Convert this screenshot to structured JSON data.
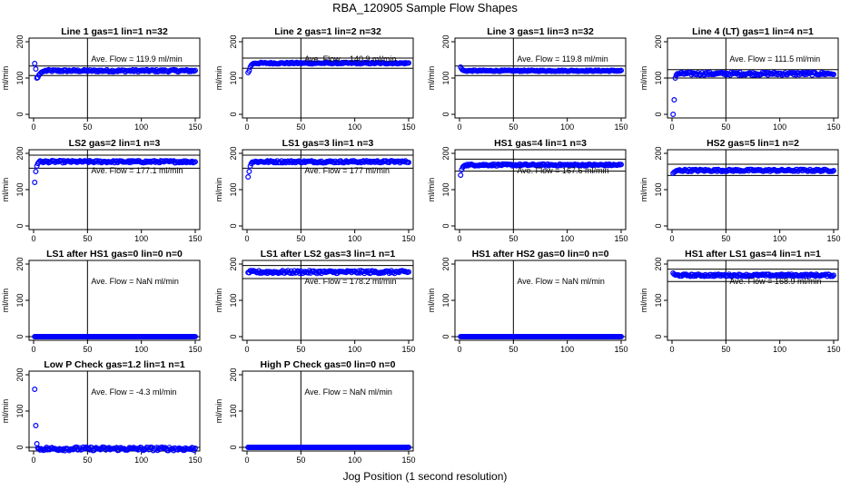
{
  "figure": {
    "title": "RBA_120905  Sample Flow Shapes",
    "xlabel": "Jog Position (1 second resolution)"
  },
  "colors": {
    "points": "#0000ff",
    "axes": "#000000"
  },
  "chart_data": [
    {
      "type": "scatter",
      "title": "Line 1 gas=1 lin=1 n=32",
      "ylabel": "ml/min",
      "annotation": "Ave. Flow =  119.9  ml/min",
      "xlim": [
        0,
        150
      ],
      "ylim": [
        -10,
        210
      ],
      "x_ticks": [
        0,
        50,
        100,
        150
      ],
      "y_ticks": [
        0,
        100,
        200
      ],
      "vline": 50,
      "hlines": [
        107,
        133
      ],
      "level": 120,
      "noise": 3,
      "start": [
        140,
        125,
        100,
        102,
        108,
        112,
        115,
        117,
        118,
        119
      ]
    },
    {
      "type": "scatter",
      "title": "Line 2 gas=1 lin=2 n=32",
      "ylabel": "ml/min",
      "annotation": "Ave. Flow =  140.9  ml/min",
      "xlim": [
        0,
        150
      ],
      "ylim": [
        -10,
        210
      ],
      "x_ticks": [
        0,
        50,
        100,
        150
      ],
      "y_ticks": [
        0,
        100,
        200
      ],
      "vline": 50,
      "hlines": [
        127,
        155
      ],
      "level": 141,
      "noise": 2,
      "start": [
        115,
        120,
        130,
        135,
        138,
        140
      ]
    },
    {
      "type": "scatter",
      "title": "Line 3 gas=1 lin=3 n=32",
      "ylabel": "ml/min",
      "annotation": "Ave. Flow =  119.8  ml/min",
      "xlim": [
        0,
        150
      ],
      "ylim": [
        -10,
        210
      ],
      "x_ticks": [
        0,
        50,
        100,
        150
      ],
      "y_ticks": [
        0,
        100,
        200
      ],
      "vline": 50,
      "hlines": [
        107,
        133
      ],
      "level": 120,
      "noise": 1.5,
      "start": [
        130,
        125,
        122,
        121,
        120
      ]
    },
    {
      "type": "scatter",
      "title": "Line 4 (LT) gas=1 lin=4 n=1",
      "ylabel": "ml/min",
      "annotation": "Ave. Flow =  111.5  ml/min",
      "xlim": [
        0,
        150
      ],
      "ylim": [
        -10,
        210
      ],
      "x_ticks": [
        0,
        50,
        100,
        150
      ],
      "y_ticks": [
        0,
        100,
        200
      ],
      "vline": 50,
      "hlines": [
        100,
        123
      ],
      "level": 112,
      "noise": 4,
      "start": [
        0,
        40,
        100,
        108,
        112
      ]
    },
    {
      "type": "scatter",
      "title": "LS2 gas=2 lin=1 n=3",
      "ylabel": "ml/min",
      "annotation": "Ave. Flow =  177.1  ml/min",
      "xlim": [
        0,
        150
      ],
      "ylim": [
        -10,
        210
      ],
      "x_ticks": [
        0,
        50,
        100,
        150
      ],
      "y_ticks": [
        0,
        100,
        200
      ],
      "vline": 50,
      "hlines": [
        159,
        195
      ],
      "level": 177,
      "noise": 3,
      "start": [
        120,
        150,
        165,
        172,
        176
      ]
    },
    {
      "type": "scatter",
      "title": "LS1 gas=3 lin=1 n=3",
      "ylabel": "ml/min",
      "annotation": "Ave. Flow =  177  ml/min",
      "xlim": [
        0,
        150
      ],
      "ylim": [
        -10,
        210
      ],
      "x_ticks": [
        0,
        50,
        100,
        150
      ],
      "y_ticks": [
        0,
        100,
        200
      ],
      "vline": 50,
      "hlines": [
        159,
        195
      ],
      "level": 177,
      "noise": 3,
      "start": [
        135,
        150,
        165,
        172,
        176
      ]
    },
    {
      "type": "scatter",
      "title": "HS1 gas=4 lin=1 n=3",
      "ylabel": "ml/min",
      "annotation": "Ave. Flow =  167.6  ml/min",
      "xlim": [
        0,
        150
      ],
      "ylim": [
        -10,
        210
      ],
      "x_ticks": [
        0,
        50,
        100,
        150
      ],
      "y_ticks": [
        0,
        100,
        200
      ],
      "vline": 50,
      "hlines": [
        151,
        184
      ],
      "level": 168,
      "noise": 2.5,
      "start": [
        140,
        155,
        162,
        165,
        167
      ]
    },
    {
      "type": "scatter",
      "title": "HS2 gas=5 lin=1 n=2",
      "ylabel": "ml/min",
      "annotation": "",
      "xlim": [
        0,
        150
      ],
      "ylim": [
        -10,
        210
      ],
      "x_ticks": [
        0,
        50,
        100,
        150
      ],
      "y_ticks": [
        0,
        100,
        200
      ],
      "vline": 50,
      "hlines": [
        139,
        170
      ],
      "level": 153,
      "noise": 3,
      "start": [
        145,
        148,
        150,
        152
      ]
    },
    {
      "type": "scatter",
      "title": "LS1 after HS1 gas=0 lin=0 n=0",
      "ylabel": "ml/min",
      "annotation": "Ave. Flow =  NaN  ml/min",
      "xlim": [
        0,
        150
      ],
      "ylim": [
        -10,
        210
      ],
      "x_ticks": [
        0,
        50,
        100,
        150
      ],
      "y_ticks": [
        0,
        100,
        200
      ],
      "vline": 50,
      "hlines": [
        0
      ],
      "level": 0,
      "noise": 0,
      "start": []
    },
    {
      "type": "scatter",
      "title": "LS1 after LS2 gas=3 lin=1 n=1",
      "ylabel": "ml/min",
      "annotation": "Ave. Flow =  178.2  ml/min",
      "xlim": [
        0,
        150
      ],
      "ylim": [
        -10,
        210
      ],
      "x_ticks": [
        0,
        50,
        100,
        150
      ],
      "y_ticks": [
        0,
        100,
        200
      ],
      "vline": 50,
      "hlines": [
        160,
        196
      ],
      "level": 178,
      "noise": 4,
      "start": []
    },
    {
      "type": "scatter",
      "title": "HS1 after HS2 gas=0 lin=0 n=0",
      "ylabel": "ml/min",
      "annotation": "Ave. Flow =  NaN  ml/min",
      "xlim": [
        0,
        150
      ],
      "ylim": [
        -10,
        210
      ],
      "x_ticks": [
        0,
        50,
        100,
        150
      ],
      "y_ticks": [
        0,
        100,
        200
      ],
      "vline": 50,
      "hlines": [
        0
      ],
      "level": 0,
      "noise": 0,
      "start": []
    },
    {
      "type": "scatter",
      "title": "HS1 after LS1 gas=4 lin=1 n=1",
      "ylabel": "ml/min",
      "annotation": "Ave. Flow =  168.9  ml/min",
      "xlim": [
        0,
        150
      ],
      "ylim": [
        -10,
        210
      ],
      "x_ticks": [
        0,
        50,
        100,
        150
      ],
      "y_ticks": [
        0,
        100,
        200
      ],
      "vline": 50,
      "hlines": [
        152,
        186
      ],
      "level": 169,
      "noise": 3,
      "start": [
        175,
        172
      ]
    },
    {
      "type": "scatter",
      "title": "Low P Check gas=1.2 lin=1 n=1",
      "ylabel": "ml/min",
      "annotation": "Ave. Flow =  -4.3  ml/min",
      "xlim": [
        0,
        150
      ],
      "ylim": [
        -10,
        210
      ],
      "x_ticks": [
        0,
        50,
        100,
        150
      ],
      "y_ticks": [
        0,
        100,
        200
      ],
      "vline": 50,
      "hlines": [
        0
      ],
      "level": -4,
      "noise": 5,
      "start": [
        160,
        60,
        10
      ]
    },
    {
      "type": "scatter",
      "title": "High P Check gas=0 lin=0 n=0",
      "ylabel": "ml/min",
      "annotation": "Ave. Flow =  NaN  ml/min",
      "xlim": [
        0,
        150
      ],
      "ylim": [
        -10,
        210
      ],
      "x_ticks": [
        0,
        50,
        100,
        150
      ],
      "y_ticks": [
        0,
        100,
        200
      ],
      "vline": 50,
      "hlines": [
        0
      ],
      "level": 0,
      "noise": 0,
      "start": []
    }
  ]
}
